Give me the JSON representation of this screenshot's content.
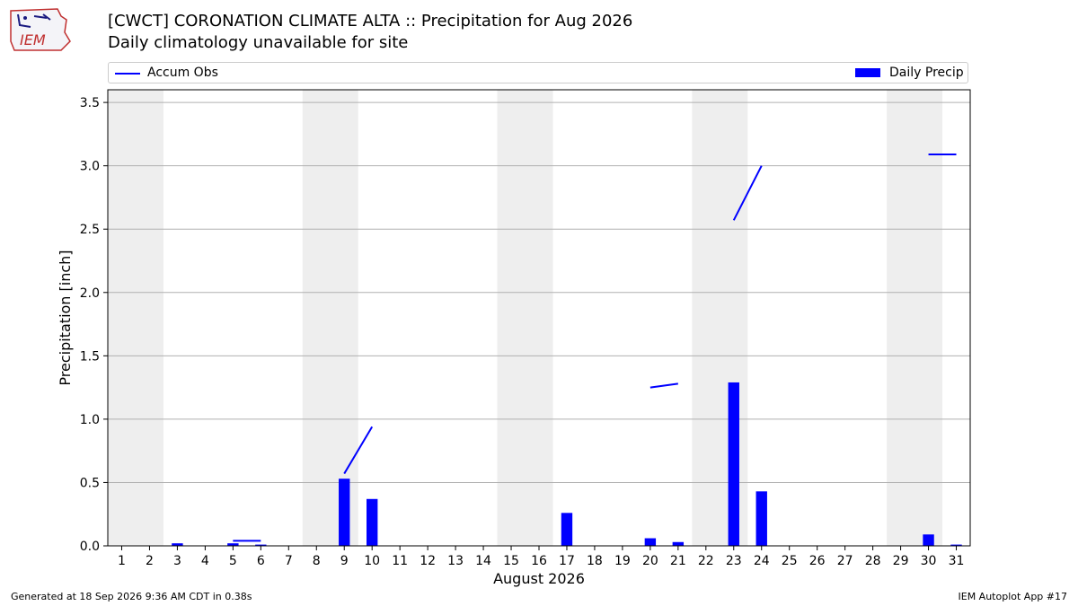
{
  "header": {
    "logo_text": "IEM",
    "title": "[CWCT] CORONATION CLIMATE  ALTA :: Precipitation for Aug 2026",
    "subtitle": "Daily climatology unavailable for site"
  },
  "legend": {
    "line_label": "Accum Obs",
    "bar_label": "Daily Precip",
    "placement": "top-full-width"
  },
  "footer": {
    "left": "Generated at 18 Sep 2026 9:36 AM CDT in 0.38s",
    "right": "IEM Autoplot App #17"
  },
  "colors": {
    "series": "#0000ff",
    "weekend_shade": "#eeeeee",
    "grid": "#b0b0b0"
  },
  "chart_data": {
    "type": "bar",
    "xlabel": "August 2026",
    "ylabel": "Precipitation [inch]",
    "ylim": [
      0,
      3.6
    ],
    "xlim": [
      0.5,
      31.5
    ],
    "yticks": [
      0.0,
      0.5,
      1.0,
      1.5,
      2.0,
      2.5,
      3.0,
      3.5
    ],
    "ytick_labels": [
      "0.0",
      "0.5",
      "1.0",
      "1.5",
      "2.0",
      "2.5",
      "3.0",
      "3.5"
    ],
    "categories": [
      "1",
      "2",
      "3",
      "4",
      "5",
      "6",
      "7",
      "8",
      "9",
      "10",
      "11",
      "12",
      "13",
      "14",
      "15",
      "16",
      "17",
      "18",
      "19",
      "20",
      "21",
      "22",
      "23",
      "24",
      "25",
      "26",
      "27",
      "28",
      "29",
      "30",
      "31"
    ],
    "grid": "y",
    "shaded_days": [
      [
        1,
        2
      ],
      [
        8,
        9
      ],
      [
        15,
        16
      ],
      [
        22,
        23
      ],
      [
        29,
        30
      ]
    ],
    "series": [
      {
        "name": "Daily Precip",
        "type": "bar",
        "x": [
          3,
          5,
          6,
          9,
          10,
          17,
          20,
          21,
          23,
          24,
          30,
          31
        ],
        "values": [
          0.02,
          0.02,
          0.01,
          0.53,
          0.37,
          0.26,
          0.06,
          0.03,
          1.29,
          0.43,
          0.09,
          0.01
        ]
      },
      {
        "name": "Accum Obs",
        "type": "line",
        "segments": [
          [
            [
              5,
              0.04
            ],
            [
              6,
              0.04
            ]
          ],
          [
            [
              9,
              0.57
            ],
            [
              10,
              0.94
            ]
          ],
          [
            [
              20,
              1.25
            ],
            [
              21,
              1.28
            ]
          ],
          [
            [
              23,
              2.57
            ],
            [
              24,
              3.0
            ]
          ],
          [
            [
              30,
              3.09
            ],
            [
              31,
              3.09
            ]
          ]
        ]
      }
    ]
  }
}
